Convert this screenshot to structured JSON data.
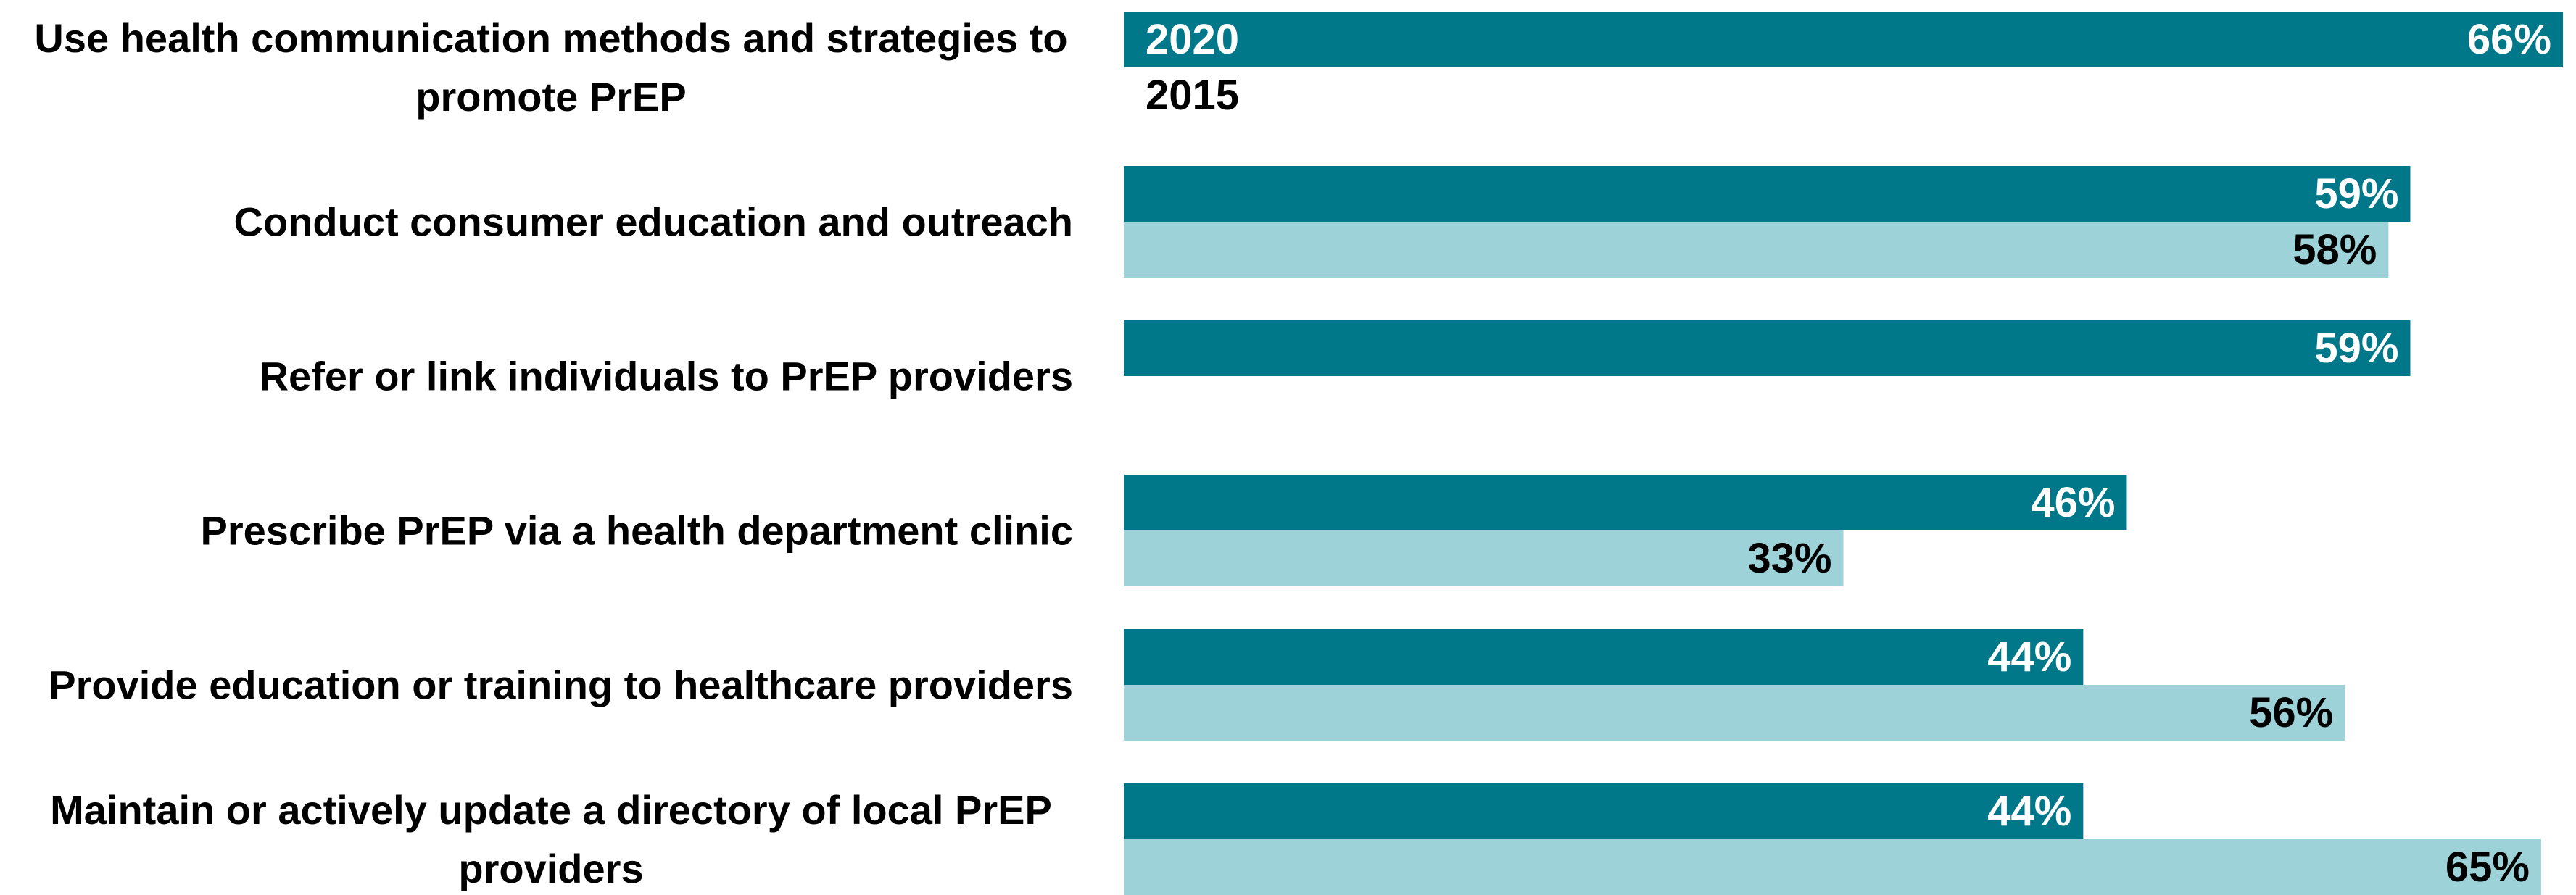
{
  "chart_data": {
    "type": "bar",
    "orientation": "horizontal",
    "categories": [
      "Use health communication methods and strategies to promote PrEP",
      "Conduct consumer education and outreach",
      "Refer or link individuals to PrEP providers",
      "Prescribe PrEP via a health department clinic",
      "Provide education or training to healthcare providers",
      "Maintain or actively update a directory of local PrEP providers"
    ],
    "series": [
      {
        "name": "2020",
        "color": "#00788a",
        "label_color": "#ffffff",
        "values": [
          66,
          59,
          59,
          46,
          44,
          44
        ],
        "value_labels": [
          "66%",
          "59%",
          "59%",
          "46%",
          "44%",
          "44%"
        ]
      },
      {
        "name": "2015",
        "color": "#9dd3d8",
        "label_color": "#000000",
        "values": [
          null,
          58,
          null,
          33,
          56,
          65
        ],
        "value_labels": [
          null,
          "58%",
          null,
          "33%",
          "56%",
          "65%"
        ]
      }
    ],
    "xlim": [
      0,
      66
    ]
  }
}
